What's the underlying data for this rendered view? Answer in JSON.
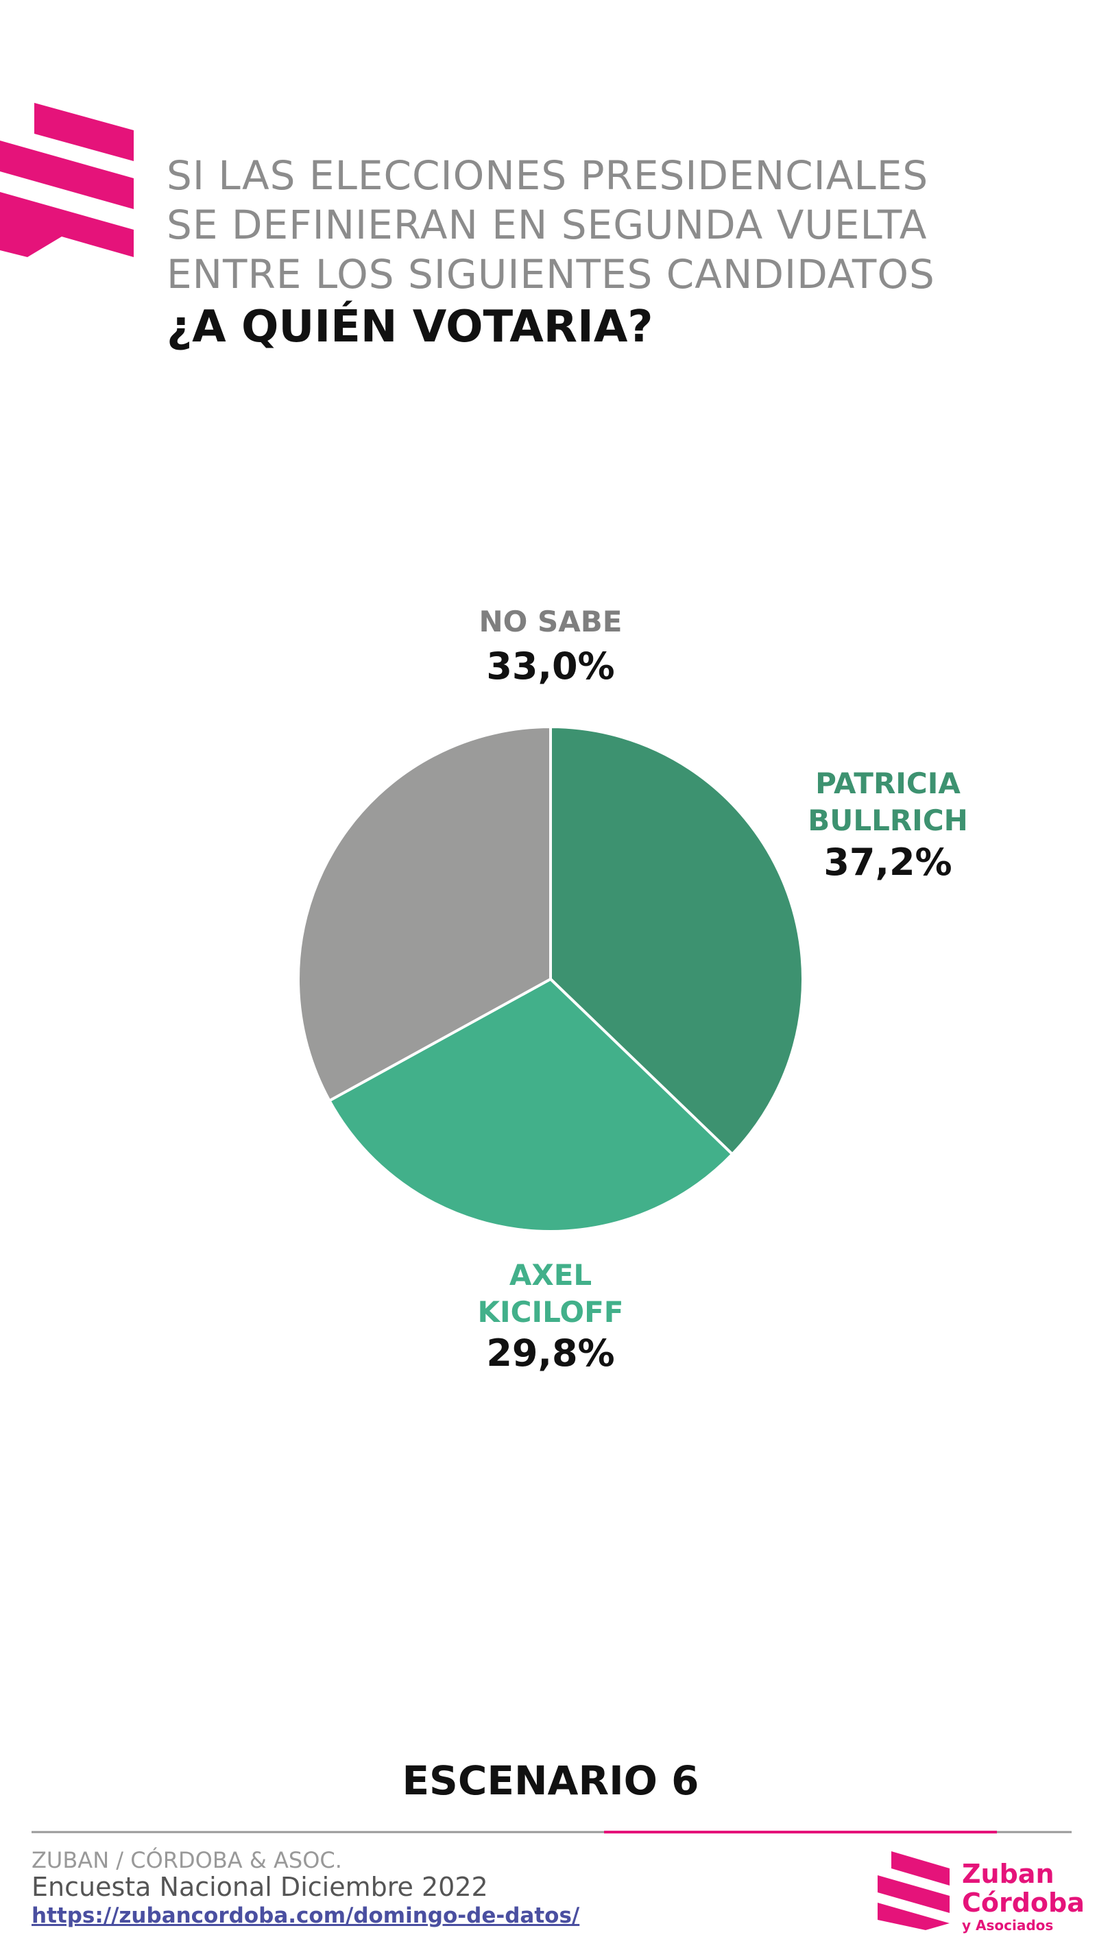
{
  "header": {
    "title_lines": [
      "SI LAS ELECCIONES PRESIDENCIALES",
      "SE DEFINIERAN EN SEGUNDA VUELTA",
      "ENTRE LOS SIGUIENTES CANDIDATOS"
    ],
    "question": "¿A QUIÉN VOTARIA?"
  },
  "chart_data": {
    "type": "pie",
    "categories": [
      "PATRICIA BULLRICH",
      "AXEL KICILOFF",
      "NO SABE"
    ],
    "values": [
      37.2,
      29.8,
      33.0
    ],
    "value_labels": [
      "37,2%",
      "29,8%",
      "33,0%"
    ],
    "colors": [
      "#3d9270",
      "#42b08a",
      "#9b9b9a"
    ],
    "label_colors": [
      "#3d9270",
      "#42b08a",
      "#7f7f7f"
    ]
  },
  "scenario": "ESCENARIO 6",
  "footer": {
    "org": "ZUBAN / CÓRDOBA & ASOC.",
    "survey": "Encuesta Nacional Diciembre 2022",
    "url": "https://zubancordoba.com/domingo-de-datos/"
  },
  "logo": {
    "line1": "Zuban",
    "line2": "Córdoba",
    "line3": "y Asociados"
  }
}
